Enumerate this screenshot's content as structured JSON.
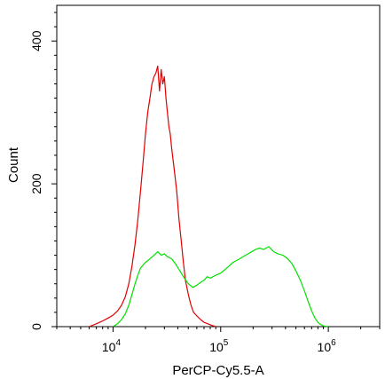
{
  "chart_data": {
    "type": "line",
    "xlabel": "PerCP-Cy5.5-A",
    "ylabel": "Count",
    "x_scale": "log",
    "xlim": [
      3000,
      3000000
    ],
    "ylim": [
      0,
      450
    ],
    "grid": false,
    "x_ticks": [
      {
        "base": "10",
        "exp": "4",
        "value": 10000
      },
      {
        "base": "10",
        "exp": "5",
        "value": 100000
      },
      {
        "base": "10",
        "exp": "6",
        "value": 1000000
      }
    ],
    "y_ticks": [
      {
        "label": "0",
        "value": 0
      },
      {
        "label": "200",
        "value": 200
      },
      {
        "label": "400",
        "value": 400
      }
    ],
    "series": [
      {
        "color": "#e00000",
        "x": [
          6000,
          7000,
          8000,
          9000,
          10000,
          11000,
          12000,
          13000,
          14000,
          15000,
          16000,
          17000,
          18000,
          19000,
          20000,
          21000,
          22000,
          23000,
          24000,
          25000,
          26000,
          27000,
          28000,
          29000,
          30000,
          31000,
          32000,
          33000,
          34000,
          35000,
          37000,
          39000,
          41000,
          43000,
          45000,
          47000,
          50000,
          53000,
          56000,
          60000,
          65000,
          70000,
          76000,
          82000,
          90000
        ],
        "y": [
          0,
          4,
          8,
          12,
          16,
          22,
          30,
          42,
          60,
          85,
          115,
          150,
          190,
          230,
          270,
          300,
          320,
          340,
          350,
          355,
          365,
          330,
          360,
          340,
          350,
          320,
          300,
          280,
          270,
          250,
          220,
          190,
          150,
          120,
          90,
          65,
          45,
          30,
          20,
          15,
          10,
          6,
          4,
          2,
          0
        ]
      },
      {
        "color": "#00e000",
        "x": [
          10000,
          11000,
          12000,
          13000,
          14000,
          15000,
          16000,
          17000,
          18000,
          20000,
          22000,
          24000,
          26000,
          28000,
          30000,
          32000,
          35000,
          38000,
          41000,
          45000,
          50000,
          55000,
          60000,
          65000,
          70000,
          75000,
          80000,
          90000,
          100000,
          110000,
          120000,
          130000,
          150000,
          170000,
          190000,
          210000,
          230000,
          250000,
          280000,
          310000,
          340000,
          380000,
          420000,
          460000,
          500000,
          550000,
          600000,
          650000,
          700000,
          750000,
          800000,
          850000,
          900000,
          1000000
        ],
        "y": [
          0,
          4,
          10,
          18,
          30,
          45,
          60,
          72,
          82,
          90,
          95,
          100,
          105,
          100,
          102,
          98,
          95,
          88,
          80,
          70,
          60,
          55,
          58,
          62,
          65,
          70,
          68,
          72,
          75,
          80,
          85,
          90,
          95,
          100,
          104,
          108,
          110,
          108,
          112,
          105,
          102,
          100,
          95,
          88,
          78,
          65,
          50,
          35,
          22,
          12,
          6,
          3,
          1,
          0
        ]
      }
    ]
  }
}
